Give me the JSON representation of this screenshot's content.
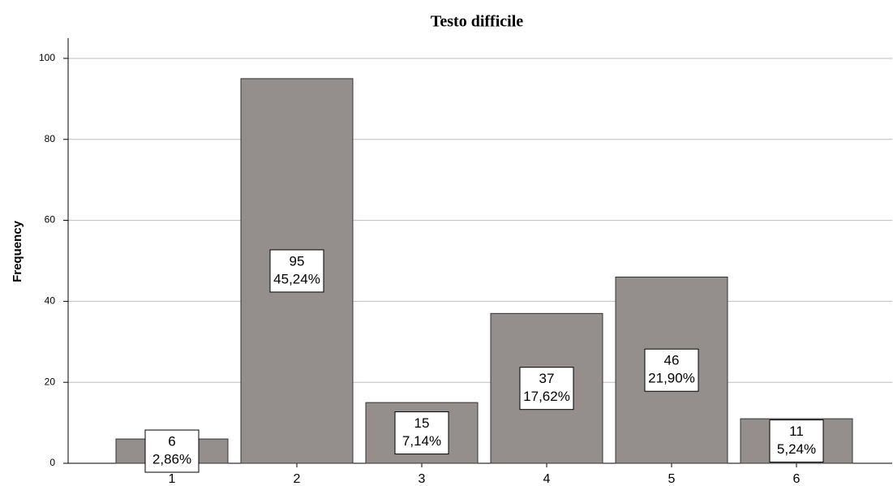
{
  "chart_data": {
    "type": "bar",
    "title": "Testo difficile",
    "y_label": "Frequency",
    "categories": [
      "1",
      "2",
      "3",
      "4",
      "5",
      "6"
    ],
    "values": [
      6,
      95,
      15,
      37,
      46,
      11
    ],
    "percent_labels": [
      "2,86%",
      "45,24%",
      "7,14%",
      "17,62%",
      "21,90%",
      "5,24%"
    ],
    "color": "#948f8c",
    "ylim": [
      0,
      105
    ],
    "yticks": [
      0,
      20,
      40,
      60,
      80,
      100
    ],
    "grid": true
  }
}
